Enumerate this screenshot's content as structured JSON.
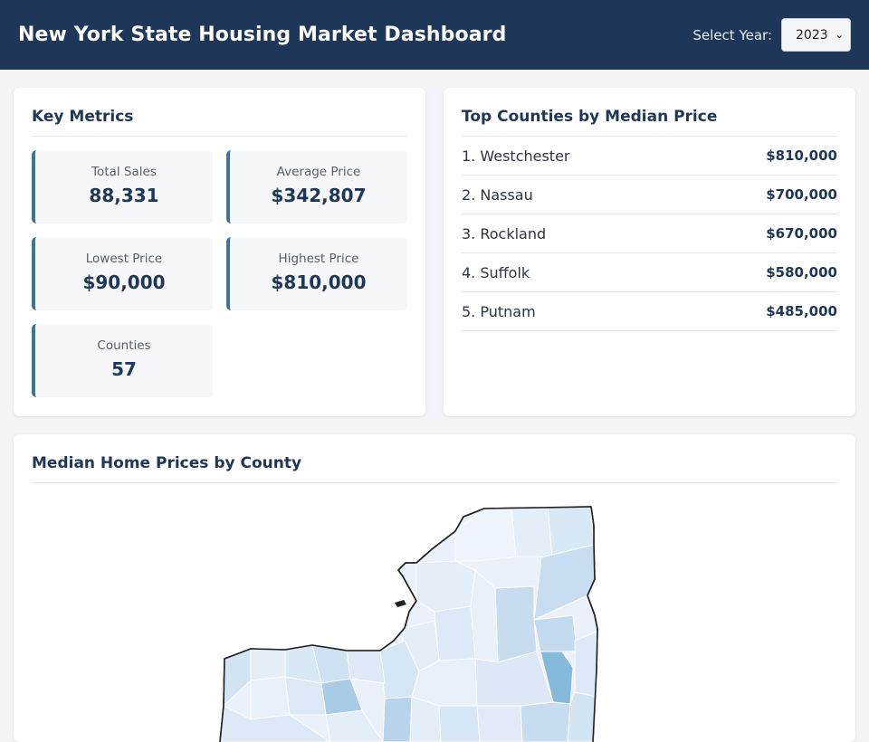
{
  "header": {
    "title": "New York State Housing Market Dashboard",
    "year_label": "Select Year:",
    "year_selected": "2023"
  },
  "metrics": {
    "title": "Key Metrics",
    "items": [
      {
        "label": "Total Sales",
        "value": "88,331"
      },
      {
        "label": "Average Price",
        "value": "$342,807"
      },
      {
        "label": "Lowest Price",
        "value": "$90,000"
      },
      {
        "label": "Highest Price",
        "value": "$810,000"
      },
      {
        "label": "Counties",
        "value": "57"
      }
    ]
  },
  "top_counties": {
    "title": "Top Counties by Median Price",
    "items": [
      {
        "name": "1. Westchester",
        "price": "$810,000"
      },
      {
        "name": "2. Nassau",
        "price": "$700,000"
      },
      {
        "name": "3. Rockland",
        "price": "$670,000"
      },
      {
        "name": "4. Suffolk",
        "price": "$580,000"
      },
      {
        "name": "5. Putnam",
        "price": "$485,000"
      }
    ]
  },
  "map": {
    "title": "Median Home Prices by County",
    "colors": {
      "lightest": "#eef4fb",
      "light": "#dde9f6",
      "mid": "#c8dcf0",
      "strong": "#a9cbe6",
      "strongest": "#86badb",
      "outline": "#222222"
    }
  }
}
